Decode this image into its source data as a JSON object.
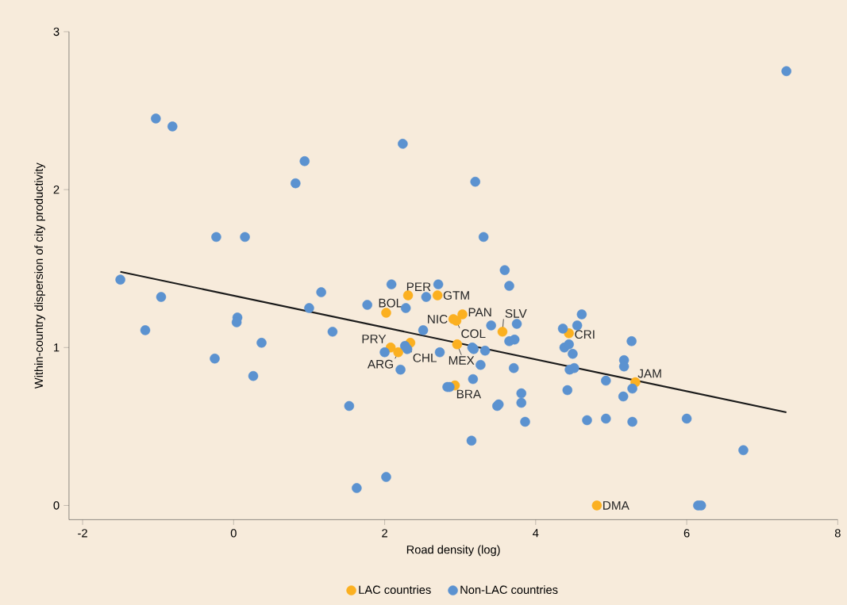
{
  "chart_data": {
    "type": "scatter",
    "xlabel": "Road density (log)",
    "ylabel": "Within-country dispersion of city productivity",
    "xlim": [
      -2.18,
      8
    ],
    "ylim": [
      -0.09,
      3
    ],
    "xticks": [
      -2,
      0,
      2,
      4,
      6,
      8
    ],
    "yticks": [
      0,
      1,
      2,
      3
    ],
    "legend": "bottom",
    "series": [
      {
        "name": "LAC countries",
        "color": "#fbb020",
        "marker": "circle",
        "x": [
          2.31,
          2.7,
          2.02,
          2.91,
          3.03,
          3.56,
          2.95,
          2.08,
          2.18,
          2.34,
          2.96,
          2.93,
          4.44,
          5.32,
          4.81
        ],
        "values": [
          1.33,
          1.33,
          1.22,
          1.18,
          1.21,
          1.1,
          1.17,
          1.0,
          0.97,
          1.03,
          1.02,
          0.76,
          1.09,
          0.78,
          0.0
        ]
      },
      {
        "name": "Non-LAC countries",
        "color": "#5b92d0",
        "marker": "circle",
        "x": [
          -1.5,
          -1.03,
          -0.81,
          -1.17,
          -0.96,
          -0.23,
          0.15,
          -0.25,
          0.05,
          0.04,
          0.37,
          0.26,
          0.82,
          0.94,
          1.16,
          1.0,
          1.31,
          1.53,
          1.63,
          2.02,
          1.77,
          2.09,
          2.24,
          2.0,
          2.28,
          2.55,
          2.71,
          2.51,
          2.27,
          2.3,
          2.21,
          2.73,
          2.83,
          2.86,
          3.16,
          3.18,
          3.33,
          3.27,
          3.17,
          3.2,
          3.15,
          3.31,
          3.41,
          3.59,
          3.65,
          3.75,
          3.65,
          3.72,
          3.71,
          3.81,
          3.81,
          3.49,
          3.51,
          3.86,
          4.36,
          4.61,
          4.55,
          4.38,
          4.44,
          4.49,
          4.45,
          4.51,
          4.42,
          4.68,
          4.93,
          4.93,
          5.27,
          5.17,
          5.17,
          5.16,
          5.28,
          5.28,
          6.0,
          6.75,
          6.15,
          6.19,
          7.32
        ],
        "values": [
          1.43,
          2.45,
          2.4,
          1.11,
          1.32,
          1.7,
          1.7,
          0.93,
          1.19,
          1.16,
          1.03,
          0.82,
          2.04,
          2.18,
          1.35,
          1.25,
          1.1,
          0.63,
          0.11,
          0.18,
          1.27,
          1.4,
          2.29,
          0.97,
          1.25,
          1.32,
          1.4,
          1.11,
          1.01,
          0.99,
          0.86,
          0.97,
          0.75,
          0.75,
          1.0,
          0.99,
          0.98,
          0.89,
          0.8,
          2.05,
          0.41,
          1.7,
          1.14,
          1.49,
          1.39,
          1.15,
          1.04,
          1.05,
          0.87,
          0.71,
          0.65,
          0.63,
          0.64,
          0.53,
          1.12,
          1.21,
          1.14,
          1.0,
          1.02,
          0.96,
          0.86,
          0.87,
          0.73,
          0.54,
          0.55,
          0.79,
          1.04,
          0.92,
          0.88,
          0.69,
          0.74,
          0.53,
          0.55,
          0.35,
          0.0,
          0.0,
          2.75
        ]
      },
      {
        "type": "line",
        "color": "#1a1a1a",
        "x": [
          -1.5,
          7.32
        ],
        "values": [
          1.48,
          0.59
        ]
      }
    ],
    "annotations": [
      {
        "text": "PER",
        "x": 2.31,
        "y": 1.33
      },
      {
        "text": "GTM",
        "x": 2.7,
        "y": 1.33
      },
      {
        "text": "BOL",
        "x": 2.02,
        "y": 1.22
      },
      {
        "text": "NIC",
        "x": 2.91,
        "y": 1.18
      },
      {
        "text": "PAN",
        "x": 3.03,
        "y": 1.21
      },
      {
        "text": "SLV",
        "x": 3.56,
        "y": 1.1
      },
      {
        "text": "COL",
        "x": 2.95,
        "y": 1.17
      },
      {
        "text": "PRY",
        "x": 2.08,
        "y": 1.0
      },
      {
        "text": "ARG",
        "x": 2.18,
        "y": 0.97
      },
      {
        "text": "CHL",
        "x": 2.34,
        "y": 1.03
      },
      {
        "text": "MEX",
        "x": 2.96,
        "y": 1.02
      },
      {
        "text": "BRA",
        "x": 2.93,
        "y": 0.76
      },
      {
        "text": "CRI",
        "x": 4.44,
        "y": 1.09
      },
      {
        "text": "JAM",
        "x": 5.32,
        "y": 0.78
      },
      {
        "text": "DMA",
        "x": 4.81,
        "y": 0.0
      }
    ]
  }
}
